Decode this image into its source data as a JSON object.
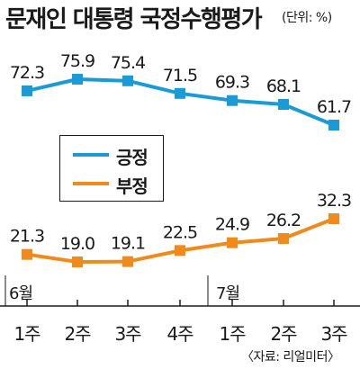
{
  "chart_data": {
    "type": "line",
    "title": "문재인 대통령 국정수행평가",
    "unit": "(단위: %)",
    "categories": [
      "1주",
      "2주",
      "3주",
      "4주",
      "1주",
      "2주",
      "3주"
    ],
    "month_labels": [
      {
        "label": "6월",
        "category_index": 0
      },
      {
        "label": "7월",
        "category_index": 4
      }
    ],
    "series": [
      {
        "name": "긍정",
        "color": "#1a9ad6",
        "values": [
          72.3,
          75.9,
          75.4,
          71.5,
          69.3,
          68.1,
          61.7
        ],
        "value_labels": [
          "72.3",
          "75.9",
          "75.4",
          "71.5",
          "69.3",
          "68.1",
          "61.7"
        ]
      },
      {
        "name": "부정",
        "color": "#f08a1c",
        "values": [
          21.3,
          19.0,
          19.1,
          22.5,
          24.9,
          26.2,
          32.3
        ],
        "value_labels": [
          "21.3",
          "19.0",
          "19.1",
          "22.5",
          "24.9",
          "26.2",
          "32.3"
        ]
      }
    ],
    "source": "〈자료: 리얼미터〉",
    "grid": false,
    "legend_placement": "middle-left"
  }
}
